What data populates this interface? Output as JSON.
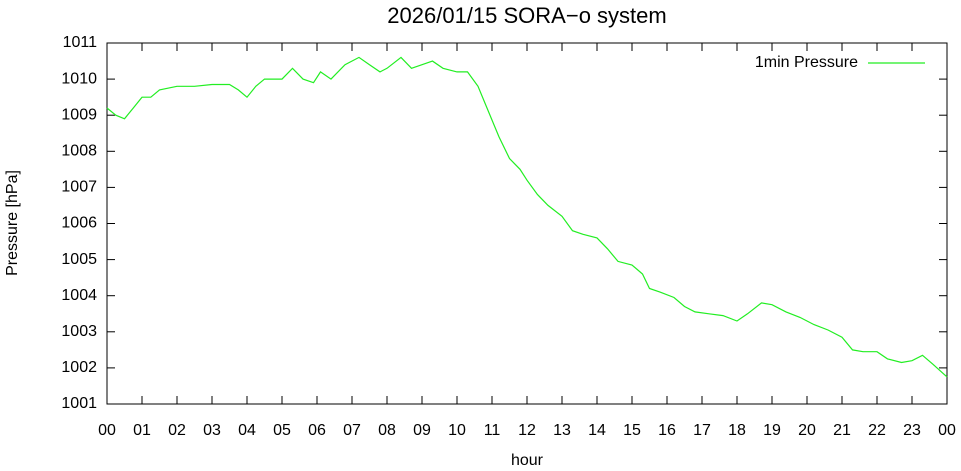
{
  "chart_data": {
    "type": "line",
    "title": "2026/01/15 SORA−o system",
    "x_label": "hour",
    "y_label": "Pressure [hPa]",
    "legend": "top right",
    "x": [
      0,
      0.25,
      0.5,
      0.75,
      1,
      1.25,
      1.5,
      2,
      2.5,
      3,
      3.5,
      3.75,
      4,
      4.25,
      4.5,
      5,
      5.3,
      5.6,
      5.9,
      6.1,
      6.4,
      6.8,
      7.2,
      7.5,
      7.8,
      8,
      8.4,
      8.7,
      9,
      9.3,
      9.6,
      10,
      10.3,
      10.6,
      10.9,
      11.2,
      11.5,
      11.8,
      12,
      12.3,
      12.6,
      13,
      13.3,
      13.6,
      14,
      14.3,
      14.6,
      15,
      15.3,
      15.5,
      15.8,
      16.2,
      16.5,
      16.8,
      17.2,
      17.6,
      18,
      18.3,
      18.7,
      19,
      19.4,
      19.8,
      20.2,
      20.6,
      21,
      21.3,
      21.6,
      22,
      22.3,
      22.7,
      23,
      23.3,
      23.6,
      24
    ],
    "series": [
      {
        "name": "1min Pressure",
        "color": "#22ee22",
        "values": [
          1009.2,
          1009.0,
          1008.9,
          1009.2,
          1009.5,
          1009.5,
          1009.7,
          1009.8,
          1009.8,
          1009.85,
          1009.85,
          1009.7,
          1009.5,
          1009.8,
          1010.0,
          1010.0,
          1010.3,
          1010.0,
          1009.9,
          1010.2,
          1010.0,
          1010.4,
          1010.6,
          1010.4,
          1010.2,
          1010.3,
          1010.6,
          1010.3,
          1010.4,
          1010.5,
          1010.3,
          1010.2,
          1010.2,
          1009.8,
          1009.1,
          1008.4,
          1007.8,
          1007.5,
          1007.2,
          1006.8,
          1006.5,
          1006.2,
          1005.8,
          1005.7,
          1005.6,
          1005.3,
          1004.95,
          1004.85,
          1004.6,
          1004.2,
          1004.1,
          1003.95,
          1003.7,
          1003.55,
          1003.5,
          1003.45,
          1003.3,
          1003.5,
          1003.8,
          1003.75,
          1003.55,
          1003.4,
          1003.2,
          1003.05,
          1002.85,
          1002.5,
          1002.45,
          1002.45,
          1002.25,
          1002.15,
          1002.2,
          1002.35,
          1002.1,
          1001.75
        ]
      }
    ],
    "xlim": [
      0,
      24
    ],
    "xticks": [
      {
        "value": 0,
        "label": "00"
      },
      {
        "value": 1,
        "label": "01"
      },
      {
        "value": 2,
        "label": "02"
      },
      {
        "value": 3,
        "label": "03"
      },
      {
        "value": 4,
        "label": "04"
      },
      {
        "value": 5,
        "label": "05"
      },
      {
        "value": 6,
        "label": "06"
      },
      {
        "value": 7,
        "label": "07"
      },
      {
        "value": 8,
        "label": "08"
      },
      {
        "value": 9,
        "label": "09"
      },
      {
        "value": 10,
        "label": "10"
      },
      {
        "value": 11,
        "label": "11"
      },
      {
        "value": 12,
        "label": "12"
      },
      {
        "value": 13,
        "label": "13"
      },
      {
        "value": 14,
        "label": "14"
      },
      {
        "value": 15,
        "label": "15"
      },
      {
        "value": 16,
        "label": "16"
      },
      {
        "value": 17,
        "label": "17"
      },
      {
        "value": 18,
        "label": "18"
      },
      {
        "value": 19,
        "label": "19"
      },
      {
        "value": 20,
        "label": "20"
      },
      {
        "value": 21,
        "label": "21"
      },
      {
        "value": 22,
        "label": "22"
      },
      {
        "value": 23,
        "label": "23"
      },
      {
        "value": 24,
        "label": "00"
      }
    ],
    "ylim": [
      1001,
      1011
    ],
    "yticks": [
      1001,
      1002,
      1003,
      1004,
      1005,
      1006,
      1007,
      1008,
      1009,
      1010,
      1011
    ]
  }
}
